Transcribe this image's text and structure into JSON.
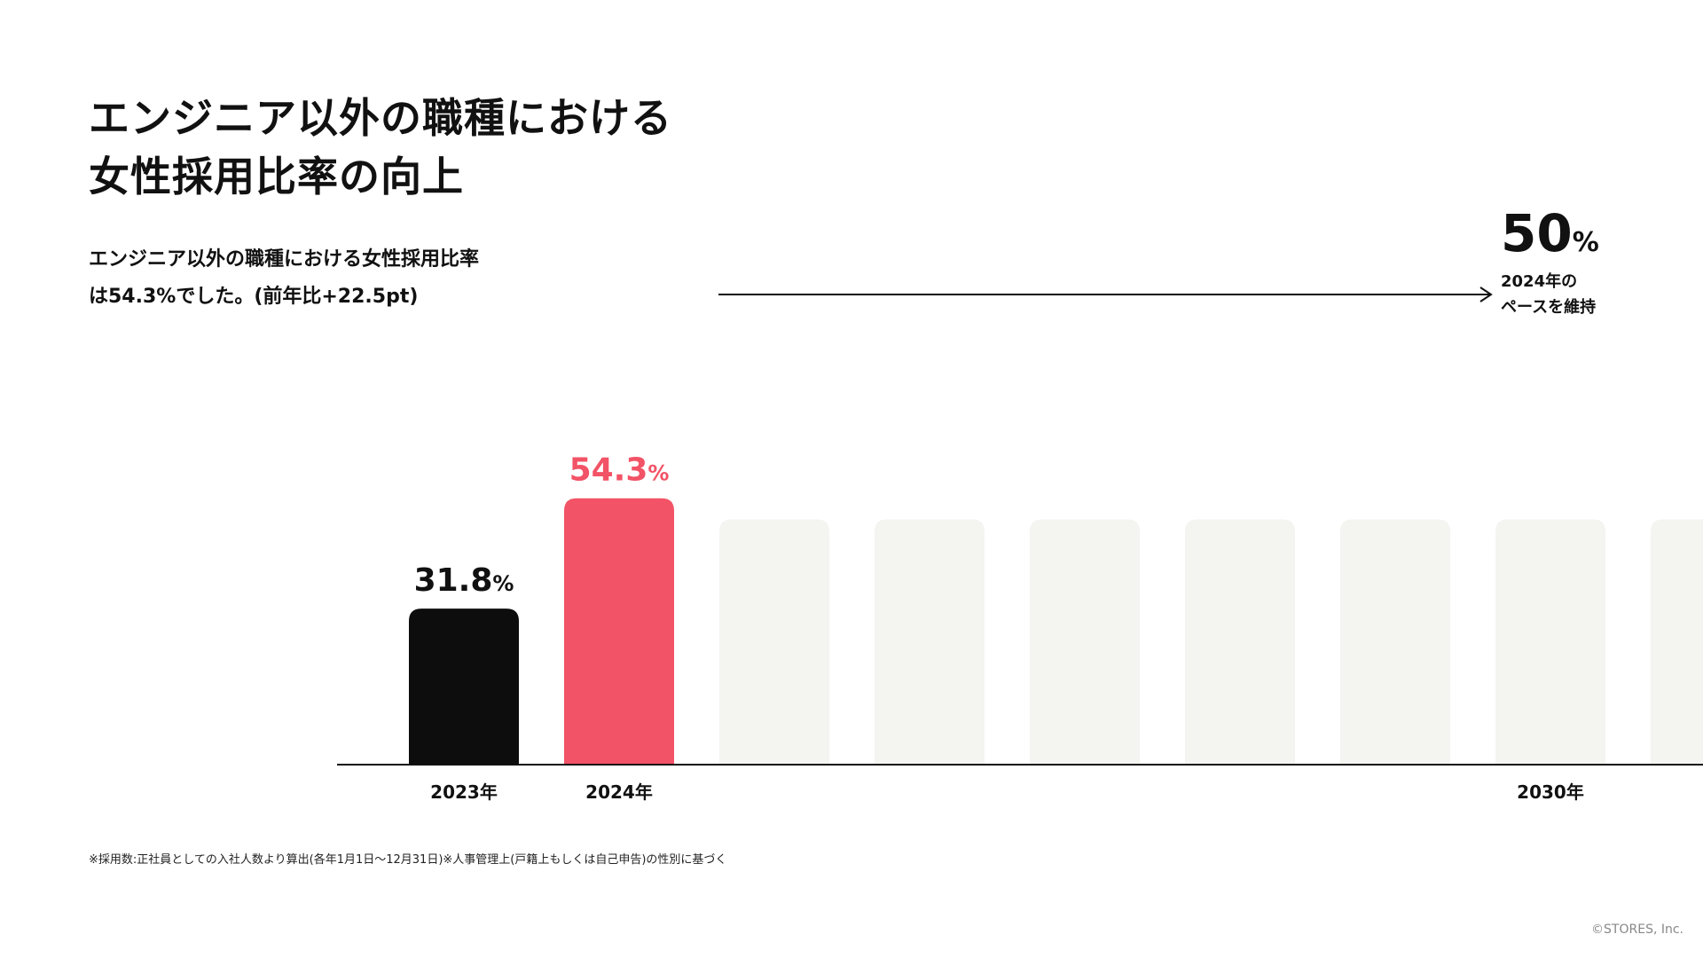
{
  "page": {
    "title_line1": "エンジニア以外の職種における",
    "title_line2": "女性採用比率の向上",
    "description_line1": "エンジニア以外の職種における女性採用比率",
    "description_line2": "は54.3%でした。(前年比+22.5pt)",
    "footnote": "※採用数:正社員としての入社人数より算出(各年1月1日〜12月31日)※人事管理上(戸籍上もしくは自己申告)の性別に基づく",
    "copyright": "©STORES, Inc."
  },
  "colors": {
    "bar_2023": "#0d0d0d",
    "bar_2024": "#f25366",
    "bar_future": "#f4f4f1",
    "accent_text": "#f25366",
    "axis": "#111111"
  },
  "chart_data": {
    "type": "bar",
    "title": "エンジニア以外の職種における女性採用比率の向上",
    "unit": "%",
    "ylim": [
      0,
      60
    ],
    "grid": false,
    "categories": [
      "2023年",
      "2024年",
      "",
      "",
      "",
      "",
      "",
      "2030年"
    ],
    "values": [
      31.8,
      54.3,
      null,
      null,
      null,
      null,
      null,
      null
    ],
    "value_labels": [
      {
        "number": "31.8",
        "unit": "%"
      },
      {
        "number": "54.3",
        "unit": "%"
      }
    ],
    "target": {
      "value": 50,
      "number": "50",
      "unit": "%",
      "note_line1": "2024年の",
      "note_line2": "ペースを維持",
      "category": "2030年"
    }
  }
}
